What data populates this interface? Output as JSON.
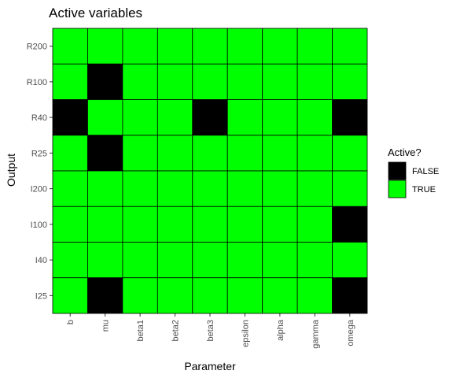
{
  "chart_data": {
    "type": "heatmap",
    "title": "Active variables",
    "xlabel": "Parameter",
    "ylabel": "Output",
    "x_categories": [
      "b",
      "mu",
      "beta1",
      "beta2",
      "beta3",
      "epsilon",
      "alpha",
      "gamma",
      "omega"
    ],
    "y_categories": [
      "R200",
      "R100",
      "R40",
      "R25",
      "I200",
      "I100",
      "I40",
      "I25"
    ],
    "values": [
      [
        "TRUE",
        "TRUE",
        "TRUE",
        "TRUE",
        "TRUE",
        "TRUE",
        "TRUE",
        "TRUE",
        "TRUE"
      ],
      [
        "TRUE",
        "FALSE",
        "TRUE",
        "TRUE",
        "TRUE",
        "TRUE",
        "TRUE",
        "TRUE",
        "TRUE"
      ],
      [
        "FALSE",
        "TRUE",
        "TRUE",
        "TRUE",
        "FALSE",
        "TRUE",
        "TRUE",
        "TRUE",
        "FALSE"
      ],
      [
        "TRUE",
        "FALSE",
        "TRUE",
        "TRUE",
        "TRUE",
        "TRUE",
        "TRUE",
        "TRUE",
        "TRUE"
      ],
      [
        "TRUE",
        "TRUE",
        "TRUE",
        "TRUE",
        "TRUE",
        "TRUE",
        "TRUE",
        "TRUE",
        "TRUE"
      ],
      [
        "TRUE",
        "TRUE",
        "TRUE",
        "TRUE",
        "TRUE",
        "TRUE",
        "TRUE",
        "TRUE",
        "FALSE"
      ],
      [
        "TRUE",
        "TRUE",
        "TRUE",
        "TRUE",
        "TRUE",
        "TRUE",
        "TRUE",
        "TRUE",
        "TRUE"
      ],
      [
        "TRUE",
        "FALSE",
        "TRUE",
        "TRUE",
        "TRUE",
        "TRUE",
        "TRUE",
        "TRUE",
        "FALSE"
      ]
    ],
    "legend": {
      "title": "Active?",
      "placement": "right",
      "entries": [
        {
          "label": "FALSE",
          "color": "#000000"
        },
        {
          "label": "TRUE",
          "color": "#00ff00"
        }
      ]
    },
    "grid": false
  }
}
